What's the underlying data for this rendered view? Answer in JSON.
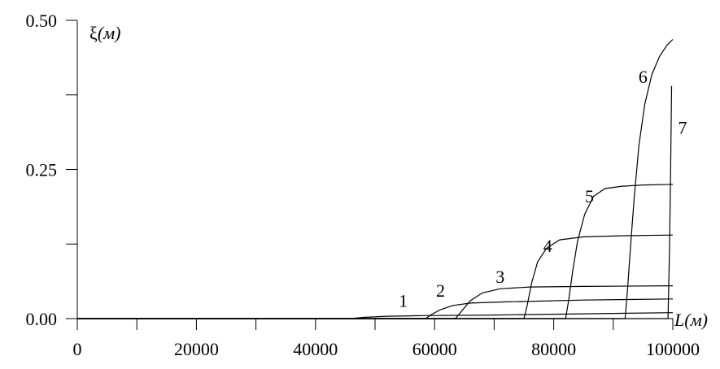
{
  "chart_data": {
    "type": "line",
    "ylabel": "ξ(м)",
    "xlabel": "L(м)",
    "xlim": [
      0,
      100000
    ],
    "ylim": [
      0,
      0.5
    ],
    "x_ticks": [
      "0",
      "20000",
      "40000",
      "60000",
      "80000",
      "100000"
    ],
    "y_ticks": [
      "0.00",
      "0.25",
      "0.50"
    ],
    "grid": false,
    "series": [
      {
        "name": "1",
        "points": [
          [
            0,
            0
          ],
          [
            46000,
            0
          ],
          [
            48000,
            0.002
          ],
          [
            52000,
            0.004
          ],
          [
            58000,
            0.005
          ],
          [
            70000,
            0.006
          ],
          [
            85000,
            0.008
          ],
          [
            100000,
            0.01
          ]
        ]
      },
      {
        "name": "2",
        "points": [
          [
            0,
            0
          ],
          [
            58500,
            0
          ],
          [
            59500,
            0.007
          ],
          [
            61000,
            0.015
          ],
          [
            63000,
            0.022
          ],
          [
            66000,
            0.026
          ],
          [
            72000,
            0.028
          ],
          [
            85000,
            0.031
          ],
          [
            100000,
            0.033
          ]
        ]
      },
      {
        "name": "3",
        "points": [
          [
            0,
            0
          ],
          [
            63500,
            0
          ],
          [
            64500,
            0.012
          ],
          [
            66000,
            0.03
          ],
          [
            68000,
            0.043
          ],
          [
            71000,
            0.05
          ],
          [
            76000,
            0.053
          ],
          [
            85000,
            0.054
          ],
          [
            100000,
            0.055
          ]
        ]
      },
      {
        "name": "4",
        "points": [
          [
            0,
            0
          ],
          [
            75000,
            0
          ],
          [
            75500,
            0.02
          ],
          [
            76300,
            0.06
          ],
          [
            77300,
            0.095
          ],
          [
            78800,
            0.118
          ],
          [
            81000,
            0.132
          ],
          [
            85000,
            0.137
          ],
          [
            92000,
            0.139
          ],
          [
            100000,
            0.14
          ]
        ]
      },
      {
        "name": "5",
        "points": [
          [
            0,
            0
          ],
          [
            82000,
            0
          ],
          [
            82500,
            0.03
          ],
          [
            83200,
            0.08
          ],
          [
            84000,
            0.13
          ],
          [
            85200,
            0.175
          ],
          [
            86700,
            0.205
          ],
          [
            88600,
            0.218
          ],
          [
            91500,
            0.222
          ],
          [
            95000,
            0.224
          ],
          [
            100000,
            0.225
          ]
        ]
      },
      {
        "name": "6",
        "points": [
          [
            0,
            0
          ],
          [
            92000,
            0
          ],
          [
            92400,
            0.05
          ],
          [
            92900,
            0.12
          ],
          [
            93500,
            0.2
          ],
          [
            94300,
            0.29
          ],
          [
            95300,
            0.36
          ],
          [
            96500,
            0.41
          ],
          [
            97800,
            0.44
          ],
          [
            99000,
            0.458
          ],
          [
            100000,
            0.468
          ]
        ]
      },
      {
        "name": "7",
        "points": [
          [
            0,
            0
          ],
          [
            99200,
            0
          ],
          [
            99450,
            0.12
          ],
          [
            99650,
            0.26
          ],
          [
            99800,
            0.39
          ]
        ]
      }
    ]
  }
}
